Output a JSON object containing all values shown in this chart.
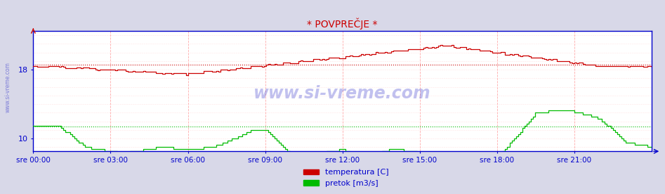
{
  "title": "* POVPREČJE *",
  "outer_bg": "#d8d8e8",
  "plot_bg": "#ffffff",
  "axis_color": "#0000cc",
  "text_color": "#0000cc",
  "grid_v_color": "#ffaaaa",
  "grid_h_color": "#ffcccc",
  "watermark_text": "www.si-vreme.com",
  "watermark_color": "#3333cc",
  "side_text": "www.si-vreme.com",
  "title_color": "#cc0000",
  "temp_color": "#cc0000",
  "flow_color": "#00bb00",
  "temp_avg_color": "#cc0000",
  "flow_avg_color": "#00bb00",
  "temp_avg_value": 18.6,
  "flow_avg_value": 11.4,
  "ylim": [
    8.5,
    22.5
  ],
  "ytick_vals": [
    10,
    18
  ],
  "xtick_labels": [
    "sre 00:00",
    "sre 03:00",
    "sre 06:00",
    "sre 09:00",
    "sre 12:00",
    "sre 15:00",
    "sre 18:00",
    "sre 21:00"
  ],
  "legend_temp_label": "temperatura [C]",
  "legend_flow_label": "pretok [m3/s]"
}
